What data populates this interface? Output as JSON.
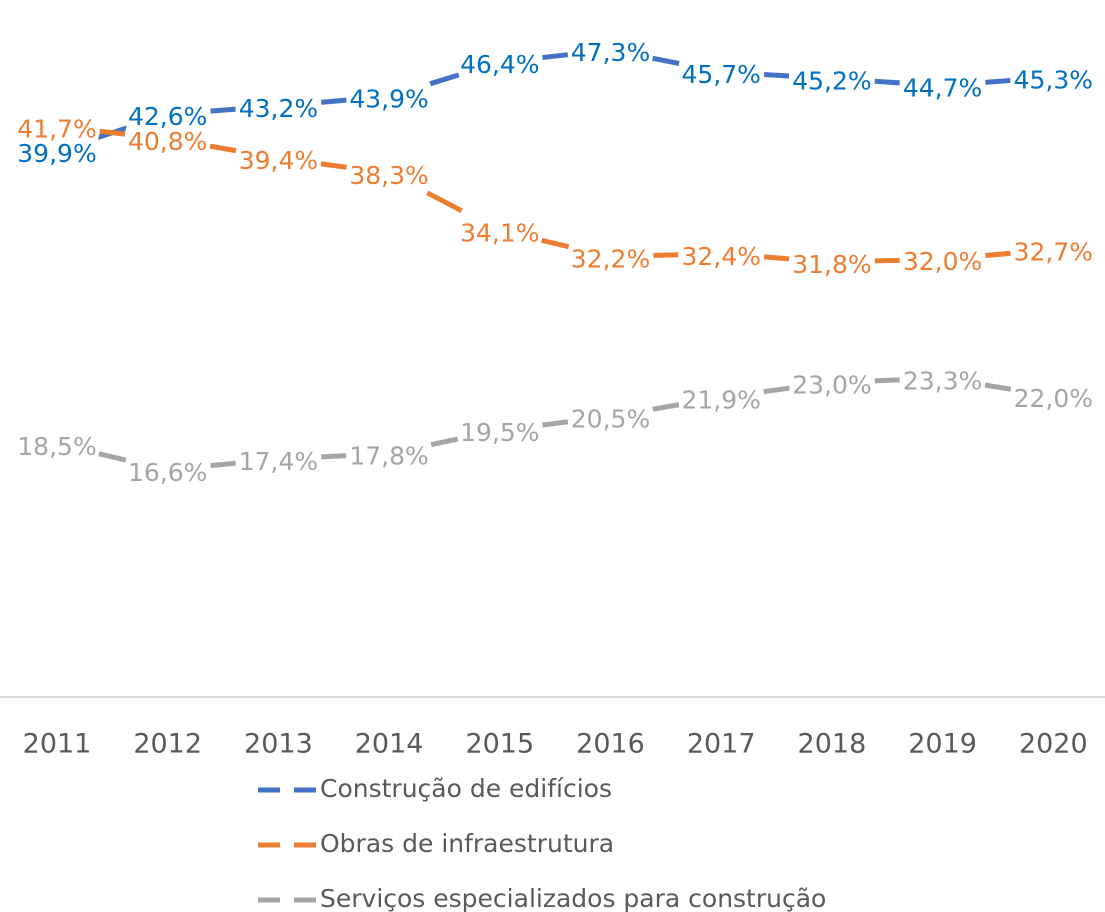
{
  "chart_data": {
    "type": "line",
    "categories": [
      "2011",
      "2012",
      "2013",
      "2014",
      "2015",
      "2016",
      "2017",
      "2018",
      "2019",
      "2020"
    ],
    "series": [
      {
        "name": "Construção de edifícios",
        "color": "#4472c4",
        "label_color": "#0070c0",
        "values": [
          39.9,
          42.6,
          43.2,
          43.9,
          46.4,
          47.3,
          45.7,
          45.2,
          44.7,
          45.3
        ],
        "value_labels": [
          "39,9%",
          "42,6%",
          "43,2%",
          "43,9%",
          "46,4%",
          "47,3%",
          "45,7%",
          "45,2%",
          "44,7%",
          "45,3%"
        ]
      },
      {
        "name": "Obras de infraestrutura",
        "color": "#ed7d31",
        "label_color": "#ed7d31",
        "values": [
          41.7,
          40.8,
          39.4,
          38.3,
          34.1,
          32.2,
          32.4,
          31.8,
          32.0,
          32.7
        ],
        "value_labels": [
          "41,7%",
          "40,8%",
          "39,4%",
          "38,3%",
          "34,1%",
          "32,2%",
          "32,4%",
          "31,8%",
          "32,0%",
          "32,7%"
        ]
      },
      {
        "name": "Serviços especializados para construção",
        "color": "#a5a5a5",
        "label_color": "#a5a5a5",
        "values": [
          18.5,
          16.6,
          17.4,
          17.8,
          19.5,
          20.5,
          21.9,
          23.0,
          23.3,
          22.0
        ],
        "value_labels": [
          "18,5%",
          "16,6%",
          "17,4%",
          "17,8%",
          "19,5%",
          "20,5%",
          "21,9%",
          "23,0%",
          "23,3%",
          "22,0%"
        ]
      }
    ],
    "ylim": [
      0,
      50
    ],
    "legend": "bottom"
  }
}
